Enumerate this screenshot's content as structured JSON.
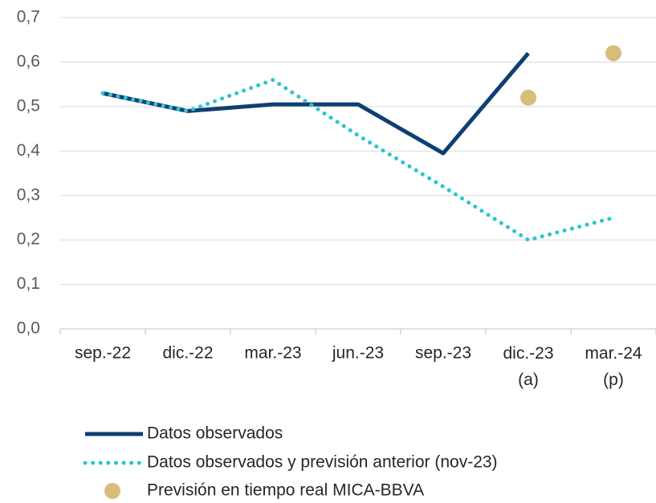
{
  "chart_data": {
    "type": "line",
    "categories": [
      "sep.-22",
      "dic.-22",
      "mar.-23",
      "jun.-23",
      "sep.-23",
      "dic.-23\n(a)",
      "mar.-24\n(p)"
    ],
    "series": [
      {
        "name": "Datos observados",
        "color": "#0e3f74",
        "style": "solid",
        "values": [
          0.53,
          0.49,
          0.505,
          0.505,
          0.395,
          0.62,
          null
        ]
      },
      {
        "name": "Datos observados y previsión anterior (nov-23)",
        "color": "#2ec5cc",
        "style": "dotted",
        "values": [
          0.53,
          0.49,
          0.56,
          0.435,
          0.32,
          0.2,
          0.25
        ]
      },
      {
        "name": "Previsión en tiempo real MICA-BBVA",
        "color": "#d8bd7a",
        "style": "marker",
        "values": [
          null,
          null,
          null,
          null,
          null,
          0.52,
          0.62
        ]
      }
    ],
    "ylim": [
      0,
      0.7
    ],
    "yticks": [
      {
        "value": 0,
        "label": "0,0"
      },
      {
        "value": 0.1,
        "label": "0,1"
      },
      {
        "value": 0.2,
        "label": "0,2"
      },
      {
        "value": 0.3,
        "label": "0,3"
      },
      {
        "value": 0.4,
        "label": "0,4"
      },
      {
        "value": 0.5,
        "label": "0,5"
      },
      {
        "value": 0.6,
        "label": "0,6"
      },
      {
        "value": 0.7,
        "label": "0,7"
      }
    ],
    "grid": true
  }
}
